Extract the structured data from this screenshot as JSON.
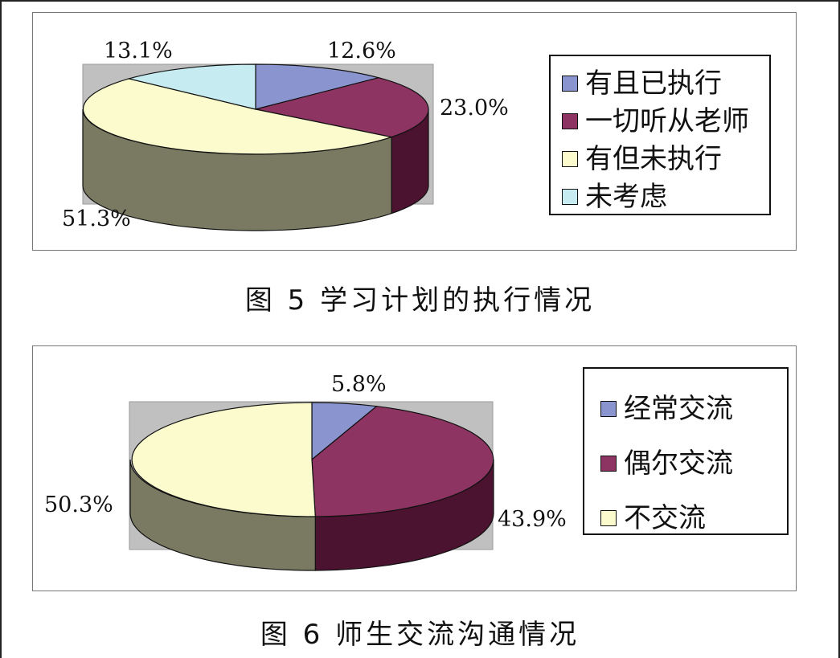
{
  "chart_data": [
    {
      "type": "pie",
      "title": "",
      "caption": "图 5 学习计划的执行情况",
      "categories": [
        "有且已执行",
        "一切听从老师",
        "有但未执行",
        "未考虑"
      ],
      "values": [
        12.6,
        23.0,
        51.3,
        13.1
      ],
      "data_labels": [
        "12.6%",
        "23.0%",
        "51.3%",
        "13.1%"
      ],
      "colors": [
        "#8a95cf",
        "#8e3462",
        "#fbfbcd",
        "#c6ebf0"
      ],
      "side_colors": [
        "#5b6389",
        "#4b1330",
        "#7a7a63",
        "#6f8f92"
      ],
      "legend": "right",
      "style": "3d"
    },
    {
      "type": "pie",
      "title": "",
      "caption": "图 6   师生交流沟通情况",
      "categories": [
        "经常交流",
        "偶尔交流",
        "不交流"
      ],
      "values": [
        5.8,
        43.9,
        50.3
      ],
      "data_labels": [
        "5.8%",
        "43.9%",
        "50.3%"
      ],
      "colors": [
        "#8a95cf",
        "#8e3462",
        "#fbfbcd"
      ],
      "side_colors": [
        "#5b6389",
        "#4b1330",
        "#7a7a63"
      ],
      "legend": "right",
      "style": "3d"
    }
  ]
}
